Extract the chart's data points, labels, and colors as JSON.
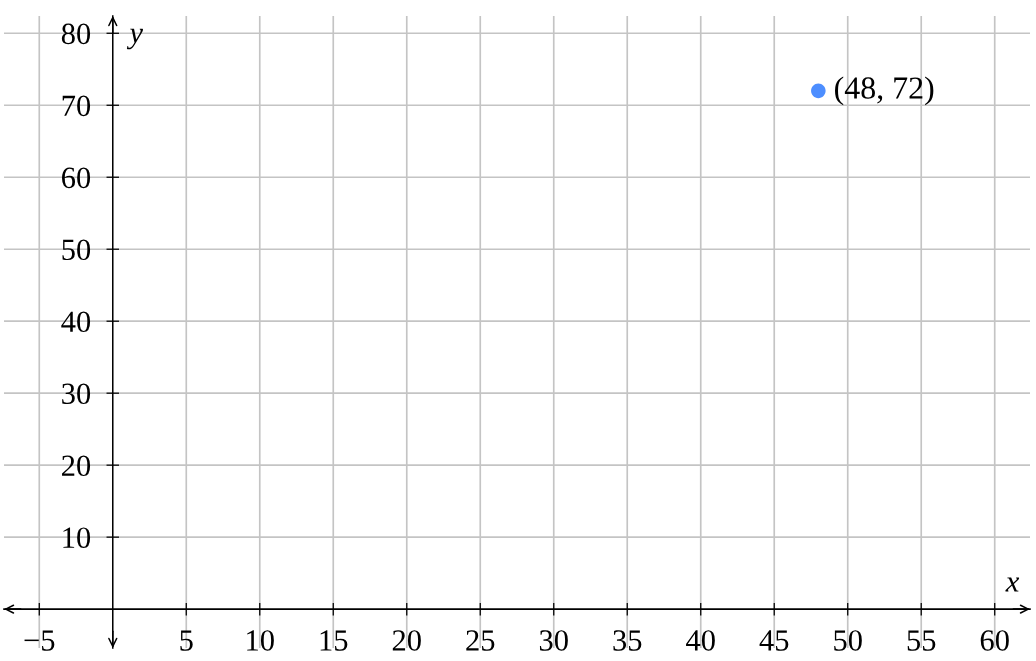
{
  "chart_data": {
    "type": "scatter",
    "xlabel": "x",
    "ylabel": "y",
    "x": [
      48
    ],
    "values": [
      72
    ],
    "color": "#4d8eff",
    "marker": "circle",
    "xlim": [
      -7.4,
      62.4
    ],
    "ylim": [
      -5.4,
      82.4
    ],
    "xticks": [
      -5,
      5,
      10,
      15,
      20,
      25,
      30,
      35,
      40,
      45,
      50,
      55,
      60
    ],
    "yticks": [
      10,
      20,
      30,
      40,
      50,
      60,
      70,
      80
    ],
    "grid": true,
    "annotations": [
      {
        "text": "(48, 72)",
        "x": 48,
        "y": 72
      }
    ]
  }
}
